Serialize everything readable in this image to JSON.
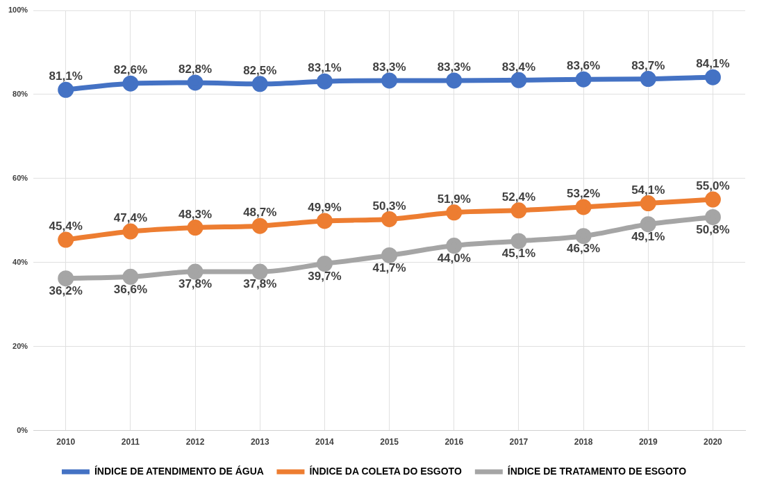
{
  "chart_data": {
    "type": "line",
    "categories": [
      "2010",
      "2011",
      "2012",
      "2013",
      "2014",
      "2015",
      "2016",
      "2017",
      "2018",
      "2019",
      "2020"
    ],
    "series": [
      {
        "name": "ÍNDICE DE ATENDIMENTO DE ÁGUA",
        "color": "#4472c4",
        "values": [
          81.1,
          82.6,
          82.8,
          82.5,
          83.1,
          83.3,
          83.3,
          83.4,
          83.6,
          83.7,
          84.1
        ],
        "value_labels": [
          "81,1%",
          "82,6%",
          "82,8%",
          "82,5%",
          "83,1%",
          "83,3%",
          "83,3%",
          "83,4%",
          "83,6%",
          "83,7%",
          "84,1%"
        ]
      },
      {
        "name": "ÍNDICE DA COLETA DO ESGOTO",
        "color": "#ed7d31",
        "values": [
          45.4,
          47.4,
          48.3,
          48.7,
          49.9,
          50.3,
          51.9,
          52.4,
          53.2,
          54.1,
          55.0
        ],
        "value_labels": [
          "45,4%",
          "47,4%",
          "48,3%",
          "48,7%",
          "49,9%",
          "50,3%",
          "51,9%",
          "52,4%",
          "53,2%",
          "54,1%",
          "55,0%"
        ]
      },
      {
        "name": "ÍNDICE DE TRATAMENTO DE ESGOTO",
        "color": "#a5a5a5",
        "values": [
          36.2,
          36.6,
          37.8,
          37.8,
          39.7,
          41.7,
          44.0,
          45.1,
          46.3,
          49.1,
          50.8
        ],
        "value_labels": [
          "36,2%",
          "36,6%",
          "37,8%",
          "37,8%",
          "39,7%",
          "41,7%",
          "44,0%",
          "45,1%",
          "46,3%",
          "49,1%",
          "50,8%"
        ]
      }
    ],
    "ylim": [
      0,
      100
    ],
    "yticks": [
      {
        "value": 0,
        "label": "0%"
      },
      {
        "value": 20,
        "label": "20%"
      },
      {
        "value": 40,
        "label": "40%"
      },
      {
        "value": 60,
        "label": "60%"
      },
      {
        "value": 80,
        "label": "80%"
      },
      {
        "value": 100,
        "label": "100%"
      }
    ],
    "grid": true,
    "legend": "bottom",
    "marker": "circle",
    "line_style": "solid"
  }
}
